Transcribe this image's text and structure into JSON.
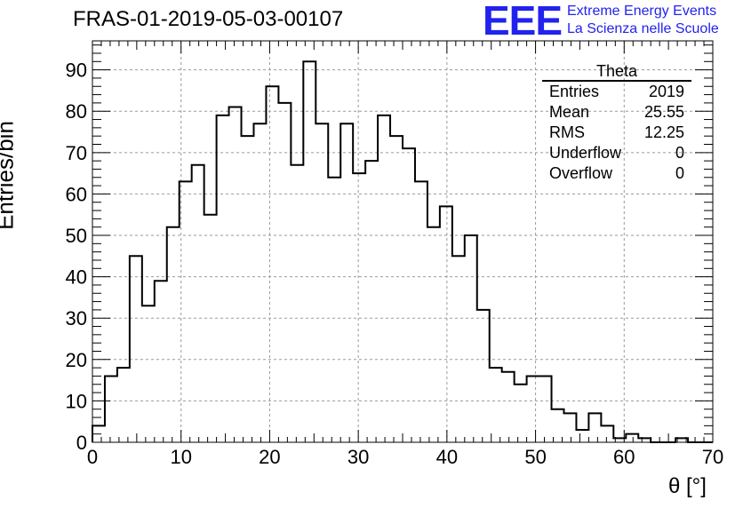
{
  "title": "FRAS-01-2019-05-03-00107",
  "logo": {
    "mark": "EEE",
    "line1": "Extreme Energy Events",
    "line2": "La Scienza nelle Scuole"
  },
  "stats": {
    "name": "Theta",
    "rows": [
      {
        "label": "Entries",
        "value": "2019"
      },
      {
        "label": "Mean",
        "value": "25.55"
      },
      {
        "label": "RMS",
        "value": "12.25"
      },
      {
        "label": "Underflow",
        "value": "0"
      },
      {
        "label": "Overflow",
        "value": "0"
      }
    ]
  },
  "chart_data": {
    "type": "bar",
    "title": "FRAS-01-2019-05-03-00107",
    "xlabel": "θ [°]",
    "ylabel": "Entries/bin",
    "xlim": [
      0,
      70
    ],
    "ylim": [
      0,
      97
    ],
    "bin_width": 1.4,
    "grid": true,
    "x_ticks": [
      0,
      10,
      20,
      30,
      40,
      50,
      60,
      70
    ],
    "y_ticks": [
      0,
      10,
      20,
      30,
      40,
      50,
      60,
      70,
      80,
      90
    ],
    "bin_edges_start": 0,
    "values": [
      4,
      16,
      18,
      45,
      33,
      39,
      52,
      63,
      67,
      55,
      79,
      81,
      74,
      77,
      86,
      82,
      67,
      92,
      77,
      64,
      77,
      65,
      68,
      79,
      74,
      71,
      63,
      52,
      57,
      45,
      50,
      32,
      18,
      17,
      14,
      16,
      16,
      8,
      7,
      3,
      7,
      4,
      1,
      2,
      1,
      0,
      0,
      1,
      0,
      0
    ]
  }
}
